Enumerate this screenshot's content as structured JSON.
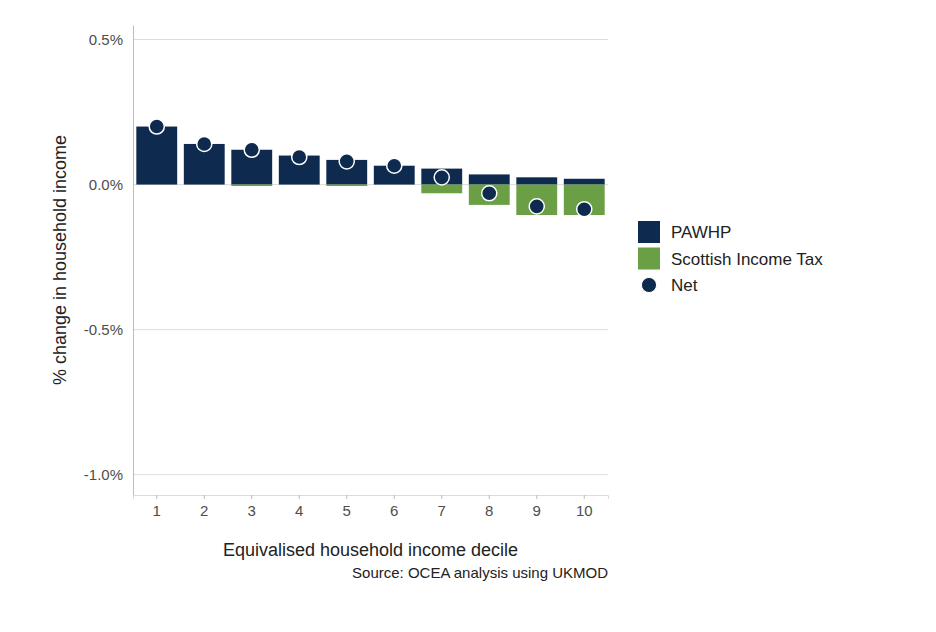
{
  "chart_data": {
    "type": "bar",
    "stacked": true,
    "grid": true,
    "legend": "right",
    "x_label": "Equivalised household income decile",
    "y_label": "% change in household income",
    "annotation": "Source: OCEA analysis using UKMOD",
    "categories": [
      "1",
      "2",
      "3",
      "4",
      "5",
      "6",
      "7",
      "8",
      "9",
      "10"
    ],
    "ylim": [
      -1.07,
      0.55
    ],
    "yticks": [
      {
        "value": -1.0,
        "label": "-1.0%"
      },
      {
        "value": -0.5,
        "label": "-0.5%"
      },
      {
        "value": 0.0,
        "label": "0.0%"
      },
      {
        "value": 0.5,
        "label": "0.5%"
      }
    ],
    "series": [
      {
        "name": "PAWHP",
        "type": "bar",
        "color": "#0e2a4e",
        "values": [
          0.2,
          0.14,
          0.12,
          0.1,
          0.085,
          0.065,
          0.055,
          0.035,
          0.025,
          0.02
        ]
      },
      {
        "name": "Scottish Income Tax",
        "type": "bar",
        "color": "#6a9f45",
        "values": [
          0,
          0,
          -0.005,
          0,
          -0.005,
          0,
          -0.03,
          -0.07,
          -0.105,
          -0.105
        ]
      },
      {
        "name": "Net",
        "type": "scatter",
        "marker": "circle",
        "color": "#0e2a4e",
        "values": [
          0.2,
          0.14,
          0.12,
          0.095,
          0.08,
          0.065,
          0.025,
          -0.03,
          -0.075,
          -0.085
        ]
      }
    ]
  }
}
